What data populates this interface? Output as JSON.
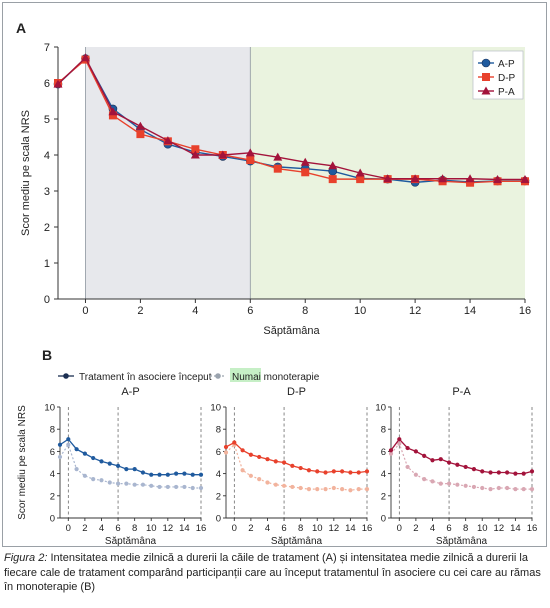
{
  "caption": {
    "label": "Figura 2:",
    "text": " Intensitatea medie zilnică a durerii la căile de tratament (A) și intensitatea medie zilnică a durerii la fiecare cale de tratament comparând participanții care au început tratamentul în asociere cu cei care au rămas în monoterapie (B)"
  },
  "colors": {
    "ap": "#1f5a9e",
    "dp": "#e8412c",
    "pa": "#a3133b",
    "ap_light": "#a9b6cf",
    "dp_light": "#f2b39d",
    "pa_light": "#d9a7b3",
    "shade_gray": "#e7e8ec",
    "shade_green": "#eaf3df",
    "highlight": "#c6efc6"
  },
  "chart_data": [
    {
      "type": "line",
      "panel_label": "A",
      "title": "",
      "xlabel": "Săptămâna",
      "ylabel": "Scor mediu pe scala NRS",
      "xlim": [
        -1,
        16
      ],
      "ylim": [
        0,
        7
      ],
      "xticks": [
        0,
        2,
        4,
        6,
        8,
        10,
        12,
        14,
        16
      ],
      "yticks": [
        0,
        1,
        2,
        3,
        4,
        5,
        6,
        7
      ],
      "shaded_ranges": [
        {
          "from": 0,
          "to": 6,
          "color": "gray"
        },
        {
          "from": 6,
          "to": 16,
          "color": "green"
        }
      ],
      "legend_position": "top-right",
      "x": [
        -1,
        0,
        1,
        2,
        3,
        4,
        5,
        6,
        7,
        8,
        9,
        10,
        11,
        12,
        13,
        14,
        15,
        16
      ],
      "series": [
        {
          "name": "A-P",
          "marker": "circle",
          "values": [
            5.97,
            6.68,
            5.28,
            4.71,
            4.3,
            4.08,
            3.96,
            3.83,
            3.67,
            3.62,
            3.55,
            3.35,
            3.33,
            3.24,
            3.3,
            3.25,
            3.28,
            3.28
          ]
        },
        {
          "name": "D-P",
          "marker": "square",
          "values": [
            6.0,
            6.65,
            5.1,
            4.58,
            4.38,
            4.16,
            4.0,
            3.86,
            3.62,
            3.52,
            3.33,
            3.33,
            3.33,
            3.33,
            3.27,
            3.23,
            3.27,
            3.27
          ]
        },
        {
          "name": "P-A",
          "marker": "triangle",
          "values": [
            5.97,
            6.7,
            5.2,
            4.8,
            4.4,
            4.0,
            4.0,
            4.06,
            3.94,
            3.8,
            3.7,
            3.5,
            3.34,
            3.34,
            3.34,
            3.34,
            3.32,
            3.32
          ]
        }
      ]
    },
    {
      "type": "line",
      "panel_label": "B",
      "legend": {
        "combination": "Tratament în asociere început",
        "mono_highlight": "Numai",
        "mono_rest": " monoterapie"
      },
      "ylabel": "Scor mediu pe scala NRS",
      "xlabel": "Săptămâna",
      "xlim": [
        -1,
        16
      ],
      "ylim": [
        0,
        10
      ],
      "xticks": [
        0,
        2,
        4,
        6,
        8,
        10,
        12,
        14,
        16
      ],
      "yticks": [
        0,
        2,
        4,
        6,
        8,
        10
      ],
      "vlines": [
        0,
        6,
        16
      ],
      "x": [
        -1,
        0,
        1,
        2,
        3,
        4,
        5,
        6,
        7,
        8,
        9,
        10,
        11,
        12,
        13,
        14,
        15,
        16
      ],
      "panels": [
        {
          "title": "A-P",
          "series": [
            {
              "name": "Tratament în asociere început",
              "values": [
                6.6,
                7.1,
                6.2,
                5.8,
                5.4,
                5.1,
                4.9,
                4.7,
                4.4,
                4.4,
                4.1,
                3.9,
                3.9,
                3.9,
                4.0,
                4.0,
                3.9,
                3.9
              ]
            },
            {
              "name": "Numai monoterapie",
              "values": [
                5.5,
                6.6,
                4.4,
                3.8,
                3.5,
                3.4,
                3.2,
                3.1,
                3.1,
                3.0,
                3.0,
                2.9,
                2.8,
                2.8,
                2.8,
                2.8,
                2.7,
                2.7
              ]
            }
          ]
        },
        {
          "title": "D-P",
          "series": [
            {
              "name": "Tratament în asociere început",
              "values": [
                6.4,
                6.8,
                6.1,
                5.7,
                5.5,
                5.3,
                5.1,
                5.0,
                4.7,
                4.5,
                4.3,
                4.2,
                4.1,
                4.2,
                4.2,
                4.1,
                4.1,
                4.2
              ]
            },
            {
              "name": "Numai monoterapie",
              "values": [
                5.9,
                6.6,
                4.3,
                3.8,
                3.5,
                3.2,
                3.0,
                2.9,
                2.8,
                2.7,
                2.6,
                2.6,
                2.6,
                2.7,
                2.6,
                2.5,
                2.6,
                2.6
              ]
            }
          ]
        },
        {
          "title": "P-A",
          "series": [
            {
              "name": "Tratament în asociere început",
              "values": [
                6.1,
                7.1,
                6.3,
                6.0,
                5.6,
                5.2,
                5.3,
                5.0,
                4.8,
                4.6,
                4.4,
                4.2,
                4.1,
                4.1,
                4.1,
                4.0,
                4.0,
                4.2
              ]
            },
            {
              "name": "Numai monoterapie",
              "values": [
                5.8,
                6.7,
                4.6,
                3.9,
                3.5,
                3.3,
                3.1,
                3.1,
                3.0,
                2.9,
                2.8,
                2.7,
                2.6,
                2.7,
                2.7,
                2.6,
                2.6,
                2.6
              ]
            }
          ]
        }
      ]
    }
  ]
}
